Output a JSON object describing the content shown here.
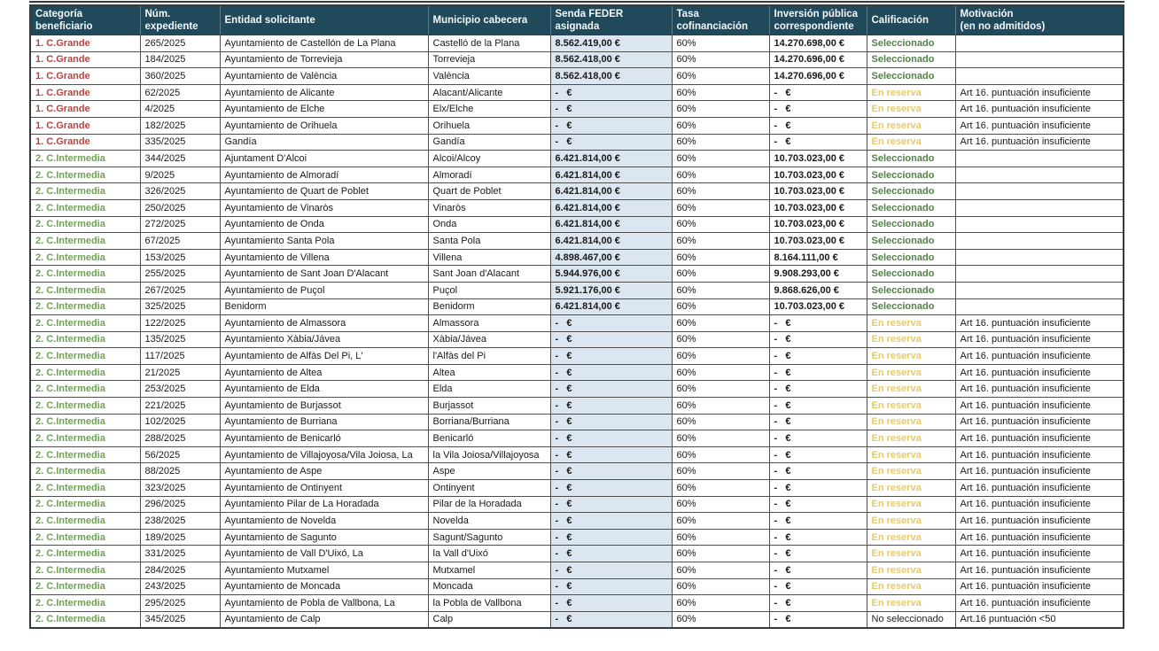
{
  "colors": {
    "header_bg": "#21495C",
    "header_text": "#F5F8FA",
    "border": "#4F4F4F",
    "border_strong": "#343C40",
    "category_large_red": "#B5443F",
    "category_intermedia_green": "#6EA254",
    "selected_green": "#538147",
    "reserve_gold": "#E8C96E",
    "not_selected_black": "#222222",
    "senda_cell_bg": "#DCE6F1"
  },
  "table": {
    "columns": [
      {
        "key": "categoria",
        "label": "Categoría\nbeneficiario"
      },
      {
        "key": "num",
        "label": "Núm.\nexpediente"
      },
      {
        "key": "entidad",
        "label": "Entidad solicitante"
      },
      {
        "key": "municipio",
        "label": "Municipio cabecera"
      },
      {
        "key": "senda",
        "label": "Senda FEDER asignada"
      },
      {
        "key": "tasa",
        "label": "Tasa\ncofinanciación"
      },
      {
        "key": "inversion",
        "label": "Inversión pública\ncorrespondiente"
      },
      {
        "key": "calificacion",
        "label": "Calificación"
      },
      {
        "key": "motivacion",
        "label": "Motivación\n(en no admitidos)"
      }
    ],
    "rows": [
      {
        "categoria": "1. C.Grande",
        "num": "265/2025",
        "entidad": "Ayuntamiento de Castellón de La Plana",
        "municipio": "Castelló de la Plana",
        "senda": "8.562.419,00 €",
        "tasa": "60%",
        "inversion": "14.270.698,00 €",
        "calificacion": "Seleccionado",
        "motivacion": ""
      },
      {
        "categoria": "1. C.Grande",
        "num": "184/2025",
        "entidad": "Ayuntamiento de Torrevieja",
        "municipio": "Torrevieja",
        "senda": "8.562.418,00 €",
        "tasa": "60%",
        "inversion": "14.270.696,00 €",
        "calificacion": "Seleccionado",
        "motivacion": ""
      },
      {
        "categoria": "1. C.Grande",
        "num": "360/2025",
        "entidad": "Ayuntamiento de València",
        "municipio": "València",
        "senda": "8.562.418,00 €",
        "tasa": "60%",
        "inversion": "14.270.696,00 €",
        "calificacion": "Seleccionado",
        "motivacion": ""
      },
      {
        "categoria": "1. C.Grande",
        "num": "62/2025",
        "entidad": "Ayuntamiento de Alicante",
        "municipio": "Alacant/Alicante",
        "senda": "-   €",
        "tasa": "60%",
        "inversion": "-   €",
        "calificacion": "En reserva",
        "motivacion": "Art 16. puntuación insuficiente"
      },
      {
        "categoria": "1. C.Grande",
        "num": "4/2025",
        "entidad": "Ayuntamiento de Elche",
        "municipio": "Elx/Elche",
        "senda": "-   €",
        "tasa": "60%",
        "inversion": "-   €",
        "calificacion": "En reserva",
        "motivacion": "Art 16. puntuación insuficiente"
      },
      {
        "categoria": "1. C.Grande",
        "num": "182/2025",
        "entidad": "Ayuntamiento de Orihuela",
        "municipio": "Orihuela",
        "senda": "-   €",
        "tasa": "60%",
        "inversion": "-   €",
        "calificacion": "En reserva",
        "motivacion": "Art 16. puntuación insuficiente"
      },
      {
        "categoria": "1. C.Grande",
        "num": "335/2025",
        "entidad": "Gandía",
        "municipio": "Gandía",
        "senda": "-   €",
        "tasa": "60%",
        "inversion": "-   €",
        "calificacion": "En reserva",
        "motivacion": "Art 16. puntuación insuficiente"
      },
      {
        "categoria": "2. C.Intermedia",
        "num": "344/2025",
        "entidad": "Ajuntament D'Alcoi",
        "municipio": "Alcoi/Alcoy",
        "senda": "6.421.814,00 €",
        "tasa": "60%",
        "inversion": "10.703.023,00 €",
        "calificacion": "Seleccionado",
        "motivacion": ""
      },
      {
        "categoria": "2. C.Intermedia",
        "num": "9/2025",
        "entidad": "Ayuntamiento de Almoradí",
        "municipio": "Almoradí",
        "senda": "6.421.814,00 €",
        "tasa": "60%",
        "inversion": "10.703.023,00 €",
        "calificacion": "Seleccionado",
        "motivacion": ""
      },
      {
        "categoria": "2. C.Intermedia",
        "num": "326/2025",
        "entidad": "Ayuntamiento de Quart de Poblet",
        "municipio": "Quart de Poblet",
        "senda": "6.421.814,00 €",
        "tasa": "60%",
        "inversion": "10.703.023,00 €",
        "calificacion": "Seleccionado",
        "motivacion": ""
      },
      {
        "categoria": "2. C.Intermedia",
        "num": "250/2025",
        "entidad": "Ayuntamiento de Vinaròs",
        "municipio": "Vinaròs",
        "senda": "6.421.814,00 €",
        "tasa": "60%",
        "inversion": "10.703.023,00 €",
        "calificacion": "Seleccionado",
        "motivacion": ""
      },
      {
        "categoria": "2. C.Intermedia",
        "num": "272/2025",
        "entidad": "Ayuntamiento de Onda",
        "municipio": "Onda",
        "senda": "6.421.814,00 €",
        "tasa": "60%",
        "inversion": "10.703.023,00 €",
        "calificacion": "Seleccionado",
        "motivacion": ""
      },
      {
        "categoria": "2. C.Intermedia",
        "num": "67/2025",
        "entidad": "Ayuntamiento Santa Pola",
        "municipio": "Santa Pola",
        "senda": "6.421.814,00 €",
        "tasa": "60%",
        "inversion": "10.703.023,00 €",
        "calificacion": "Seleccionado",
        "motivacion": ""
      },
      {
        "categoria": "2. C.Intermedia",
        "num": "153/2025",
        "entidad": "Ayuntamiento de Villena",
        "municipio": "Villena",
        "senda": "4.898.467,00 €",
        "tasa": "60%",
        "inversion": "8.164.111,00 €",
        "calificacion": "Seleccionado",
        "motivacion": ""
      },
      {
        "categoria": "2. C.Intermedia",
        "num": "255/2025",
        "entidad": "Ayuntamiento de Sant Joan D'Alacant",
        "municipio": "Sant Joan d'Alacant",
        "senda": "5.944.976,00 €",
        "tasa": "60%",
        "inversion": "9.908.293,00 €",
        "calificacion": "Seleccionado",
        "motivacion": ""
      },
      {
        "categoria": "2. C.Intermedia",
        "num": "267/2025",
        "entidad": "Ayuntamiento de Puçol",
        "municipio": "Puçol",
        "senda": "5.921.176,00 €",
        "tasa": "60%",
        "inversion": "9.868.626,00 €",
        "calificacion": "Seleccionado",
        "motivacion": ""
      },
      {
        "categoria": "2. C.Intermedia",
        "num": "325/2025",
        "entidad": "Benidorm",
        "municipio": "Benidorm",
        "senda": "6.421.814,00 €",
        "tasa": "60%",
        "inversion": "10.703.023,00 €",
        "calificacion": "Seleccionado",
        "motivacion": ""
      },
      {
        "categoria": "2. C.Intermedia",
        "num": "122/2025",
        "entidad": "Ayuntamiento de Almassora",
        "municipio": "Almassora",
        "senda": "-   €",
        "tasa": "60%",
        "inversion": "-   €",
        "calificacion": "En reserva",
        "motivacion": "Art 16. puntuación insuficiente"
      },
      {
        "categoria": "2. C.Intermedia",
        "num": "135/2025",
        "entidad": "Ayuntamiento Xàbia/Jávea",
        "municipio": "Xàbia/Jávea",
        "senda": "-   €",
        "tasa": "60%",
        "inversion": "-   €",
        "calificacion": "En reserva",
        "motivacion": "Art 16. puntuación insuficiente"
      },
      {
        "categoria": "2. C.Intermedia",
        "num": "117/2025",
        "entidad": "Ayuntamiento de Alfàs Del Pi, L'",
        "municipio": "l'Alfàs del Pi",
        "senda": "-   €",
        "tasa": "60%",
        "inversion": "-   €",
        "calificacion": "En reserva",
        "motivacion": "Art 16. puntuación insuficiente"
      },
      {
        "categoria": "2. C.Intermedia",
        "num": "21/2025",
        "entidad": "Ayuntamiento de Altea",
        "municipio": "Altea",
        "senda": "-   €",
        "tasa": "60%",
        "inversion": "-   €",
        "calificacion": "En reserva",
        "motivacion": "Art 16. puntuación insuficiente"
      },
      {
        "categoria": "2. C.Intermedia",
        "num": "253/2025",
        "entidad": "Ayuntamiento de Elda",
        "municipio": "Elda",
        "senda": "-   €",
        "tasa": "60%",
        "inversion": "-   €",
        "calificacion": "En reserva",
        "motivacion": "Art 16. puntuación insuficiente"
      },
      {
        "categoria": "2. C.Intermedia",
        "num": "221/2025",
        "entidad": "Ayuntamiento de Burjassot",
        "municipio": "Burjassot",
        "senda": "-   €",
        "tasa": "60%",
        "inversion": "-   €",
        "calificacion": "En reserva",
        "motivacion": "Art 16. puntuación insuficiente"
      },
      {
        "categoria": "2. C.Intermedia",
        "num": "102/2025",
        "entidad": "Ayuntamiento de Burriana",
        "municipio": "Borriana/Burriana",
        "senda": "-   €",
        "tasa": "60%",
        "inversion": "-   €",
        "calificacion": "En reserva",
        "motivacion": "Art 16. puntuación insuficiente"
      },
      {
        "categoria": "2. C.Intermedia",
        "num": "288/2025",
        "entidad": "Ayuntamiento de Benicarló",
        "municipio": "Benicarló",
        "senda": "-   €",
        "tasa": "60%",
        "inversion": "-   €",
        "calificacion": "En reserva",
        "motivacion": "Art 16. puntuación insuficiente"
      },
      {
        "categoria": "2. C.Intermedia",
        "num": "56/2025",
        "entidad": "Ayuntamiento de Villajoyosa/Vila Joiosa, La",
        "municipio": "la Vila Joiosa/Villajoyosa",
        "senda": "-   €",
        "tasa": "60%",
        "inversion": "-   €",
        "calificacion": "En reserva",
        "motivacion": "Art 16. puntuación insuficiente"
      },
      {
        "categoria": "2. C.Intermedia",
        "num": "88/2025",
        "entidad": "Ayuntamiento de Aspe",
        "municipio": "Aspe",
        "senda": "-   €",
        "tasa": "60%",
        "inversion": "-   €",
        "calificacion": "En reserva",
        "motivacion": "Art 16. puntuación insuficiente"
      },
      {
        "categoria": "2. C.Intermedia",
        "num": "323/2025",
        "entidad": "Ayuntamiento de Ontinyent",
        "municipio": "Ontinyent",
        "senda": "-   €",
        "tasa": "60%",
        "inversion": "-   €",
        "calificacion": "En reserva",
        "motivacion": "Art 16. puntuación insuficiente"
      },
      {
        "categoria": "2. C.Intermedia",
        "num": "296/2025",
        "entidad": "Ayuntamiento Pilar de La Horadada",
        "municipio": "Pilar de la Horadada",
        "senda": "-   €",
        "tasa": "60%",
        "inversion": "-   €",
        "calificacion": "En reserva",
        "motivacion": "Art 16. puntuación insuficiente"
      },
      {
        "categoria": "2. C.Intermedia",
        "num": "238/2025",
        "entidad": "Ayuntamiento de Novelda",
        "municipio": "Novelda",
        "senda": "-   €",
        "tasa": "60%",
        "inversion": "-   €",
        "calificacion": "En reserva",
        "motivacion": "Art 16. puntuación insuficiente"
      },
      {
        "categoria": "2. C.Intermedia",
        "num": "189/2025",
        "entidad": "Ayuntamiento de Sagunto",
        "municipio": "Sagunt/Sagunto",
        "senda": "-   €",
        "tasa": "60%",
        "inversion": "-   €",
        "calificacion": "En reserva",
        "motivacion": "Art 16. puntuación insuficiente"
      },
      {
        "categoria": "2. C.Intermedia",
        "num": "331/2025",
        "entidad": "Ayuntamiento de Vall D'Uixó, La",
        "municipio": "la Vall d'Uixó",
        "senda": "-   €",
        "tasa": "60%",
        "inversion": "-   €",
        "calificacion": "En reserva",
        "motivacion": "Art 16. puntuación insuficiente"
      },
      {
        "categoria": "2. C.Intermedia",
        "num": "284/2025",
        "entidad": "Ayuntamiento Mutxamel",
        "municipio": "Mutxamel",
        "senda": "-   €",
        "tasa": "60%",
        "inversion": "-   €",
        "calificacion": "En reserva",
        "motivacion": "Art 16. puntuación insuficiente"
      },
      {
        "categoria": "2. C.Intermedia",
        "num": "243/2025",
        "entidad": "Ayuntamiento de Moncada",
        "municipio": "Moncada",
        "senda": "-   €",
        "tasa": "60%",
        "inversion": "-   €",
        "calificacion": "En reserva",
        "motivacion": "Art 16. puntuación insuficiente"
      },
      {
        "categoria": "2. C.Intermedia",
        "num": "295/2025",
        "entidad": "Ayuntamiento de Pobla de Vallbona, La",
        "municipio": "la Pobla de Vallbona",
        "senda": "-   €",
        "tasa": "60%",
        "inversion": "-   €",
        "calificacion": "En reserva",
        "motivacion": "Art 16. puntuación insuficiente"
      },
      {
        "categoria": "2. C.Intermedia",
        "num": "345/2025",
        "entidad": "Ayuntamiento de Calp",
        "municipio": "Calp",
        "senda": "-   €",
        "tasa": "60%",
        "inversion": "-   €",
        "calificacion": "No seleccionado",
        "motivacion": "Art.16 puntuación <50"
      }
    ]
  }
}
